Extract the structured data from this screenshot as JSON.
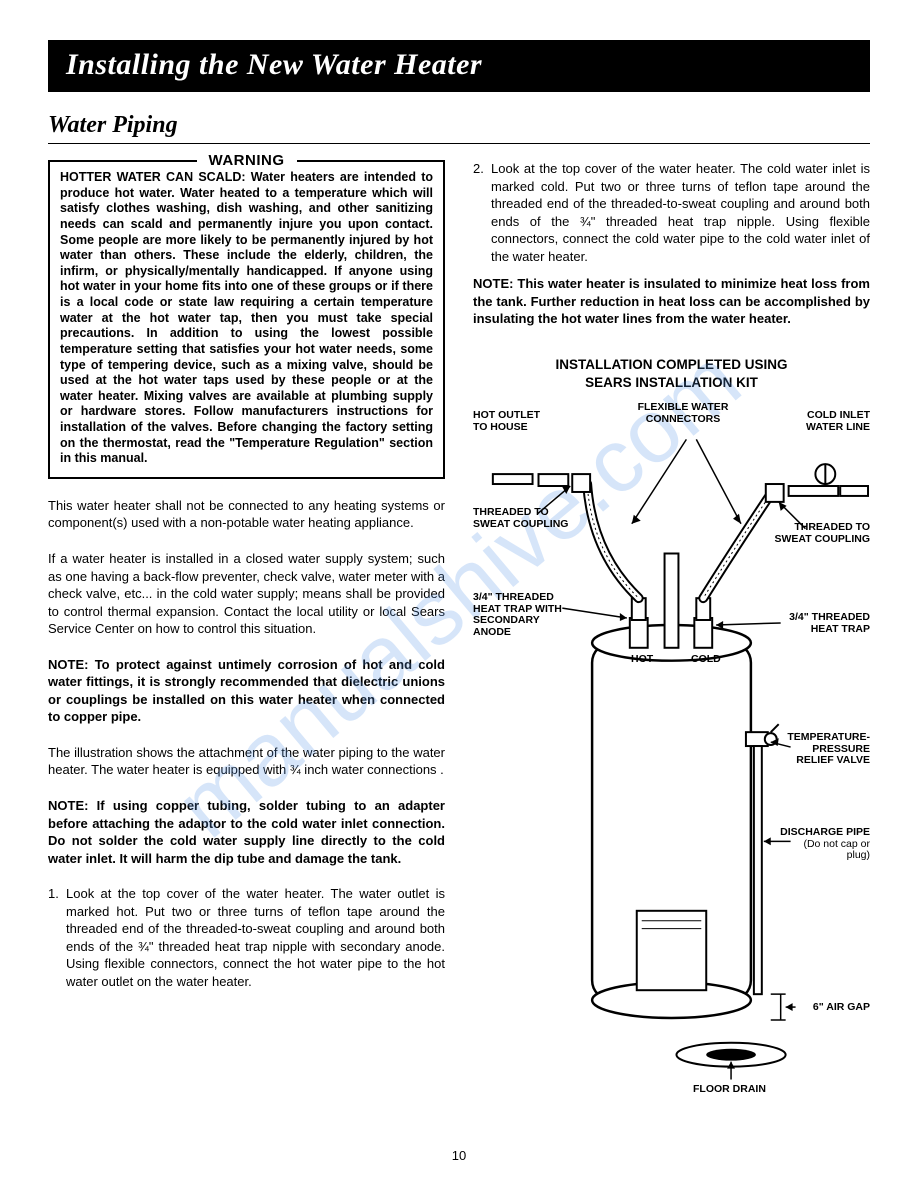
{
  "title": "Installing the New Water Heater",
  "section": "Water Piping",
  "warning": {
    "label": "WARNING",
    "body": "HOTTER WATER CAN SCALD: Water heaters are intended to produce hot water. Water heated to a temperature which will satisfy clothes washing, dish washing, and other sanitizing needs can scald and permanently injure you upon contact. Some people are more likely to be permanently injured by hot water than others. These include the elderly, children, the infirm, or physically/mentally handicapped. If anyone using hot water in your home fits into one of these groups or if there is a local code or state law requiring a certain temperature water at the hot water tap, then you must take special precautions. In addition to using the lowest possible temperature setting that satisfies your hot water needs, some type of tempering device, such as a mixing valve, should be used at the hot water taps used by these people or at the water heater. Mixing valves are available at plumbing supply or hardware stores. Follow manufacturers instructions for installation of the valves. Before changing the factory setting on the thermostat, read the \"Temperature Regulation\" section in this manual."
  },
  "left_paragraphs": {
    "p1": "This water heater shall not be connected to any heating systems or component(s) used with a non-potable water heating appliance.",
    "p2": "If a water heater is installed in a closed water supply system; such as one having a back-flow preventer, check valve, water meter with a check valve, etc... in the cold water supply; means shall be provided to control thermal expansion. Contact the local utility or local Sears Service Center on how to control this situation.",
    "p3": "NOTE: To protect against untimely corrosion of hot and cold water fittings, it is strongly recommended that dielectric unions or couplings be installed on this water heater when connected to copper pipe.",
    "p4": "The illustration shows the attachment of the water piping to the water heater. The water heater is equipped with ¾ inch water connections .",
    "p5": "NOTE: If using copper tubing, solder tubing to an adapter before attaching the adaptor to the cold water inlet connection. Do not solder the cold water supply line directly to the cold water inlet. It will harm the dip tube and damage the tank."
  },
  "steps": {
    "s1": "Look at the top cover of the water heater. The water outlet is marked hot. Put two or three turns of teflon tape around the threaded end of the threaded-to-sweat coupling and around both ends of the ¾\" threaded heat trap nipple with secondary anode. Using flexible connectors, connect the hot water pipe to the hot water outlet on the water heater.",
    "s2": "Look at the top cover of the water heater. The cold water inlet is marked cold. Put two or three turns of teflon tape around the threaded end of the threaded-to-sweat coupling and around both ends of the ¾\" threaded heat trap nipple. Using flexible connectors, connect the cold water pipe to the cold water inlet of the water heater."
  },
  "right_note": "NOTE: This water heater is insulated to minimize heat loss from the tank. Further reduction in heat loss can be accomplished by insulating the hot water lines from the water heater.",
  "diagram": {
    "title_line1": "INSTALLATION COMPLETED USING",
    "title_line2": "SEARS INSTALLATION KIT",
    "labels": {
      "hot_outlet": "HOT OUTLET\nTO HOUSE",
      "flex_conn": "FLEXIBLE WATER\nCONNECTORS",
      "cold_inlet": "COLD INLET\nWATER LINE",
      "thread_sweat_l": "THREADED TO\nSWEAT COUPLING",
      "thread_sweat_r": "THREADED TO\nSWEAT COUPLING",
      "heat_trap_l": "3/4\" THREADED\nHEAT TRAP WITH\nSECONDARY\nANODE",
      "heat_trap_r": "3/4\" THREADED\nHEAT TRAP",
      "hot": "HOT",
      "cold": "COLD",
      "tpr": "TEMPERATURE-\nPRESSURE\nRELIEF VALVE",
      "discharge": "DISCHARGE PIPE\n(Do not cap or\nplug)",
      "air_gap": "6\" AIR GAP",
      "drain": "FLOOR DRAIN"
    }
  },
  "page_number": "10",
  "watermark": "manualshive.com"
}
